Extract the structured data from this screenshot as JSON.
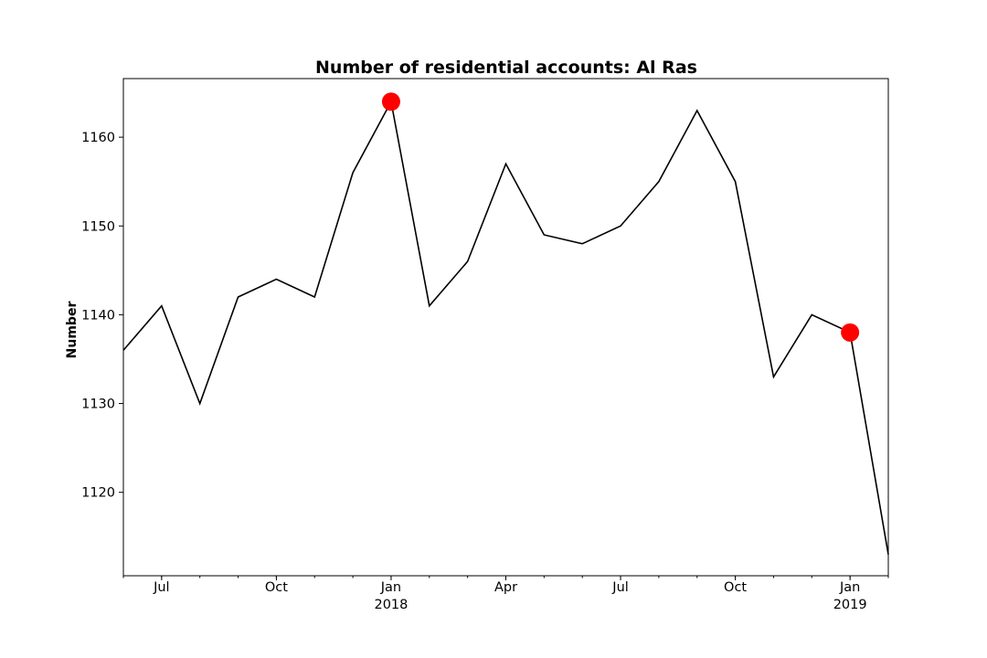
{
  "chart_data": {
    "type": "line",
    "title": "Number of residential accounts: Al Ras",
    "xlabel": "",
    "ylabel": "Number",
    "x": [
      "2017-06",
      "2017-07",
      "2017-08",
      "2017-09",
      "2017-10",
      "2017-11",
      "2017-12",
      "2018-01",
      "2018-02",
      "2018-03",
      "2018-04",
      "2018-05",
      "2018-06",
      "2018-07",
      "2018-08",
      "2018-09",
      "2018-10",
      "2018-11",
      "2018-12",
      "2019-01",
      "2019-02"
    ],
    "values": [
      1136,
      1141,
      1130,
      1142,
      1144,
      1142,
      1156,
      1164,
      1141,
      1146,
      1157,
      1149,
      1148,
      1150,
      1155,
      1163,
      1155,
      1133,
      1140,
      1138,
      1113
    ],
    "xlim": [
      "2017-06",
      "2019-02"
    ],
    "ylim": [
      1110.6,
      1166.6
    ],
    "yticks": [
      1120,
      1130,
      1140,
      1150,
      1160
    ],
    "xticks_major": [
      {
        "x": "2017-07",
        "label": "Jul",
        "sublabel": ""
      },
      {
        "x": "2017-10",
        "label": "Oct",
        "sublabel": ""
      },
      {
        "x": "2018-01",
        "label": "Jan",
        "sublabel": "2018"
      },
      {
        "x": "2018-04",
        "label": "Apr",
        "sublabel": ""
      },
      {
        "x": "2018-07",
        "label": "Jul",
        "sublabel": ""
      },
      {
        "x": "2018-10",
        "label": "Oct",
        "sublabel": ""
      },
      {
        "x": "2019-01",
        "label": "Jan",
        "sublabel": "2019"
      }
    ],
    "highlighted_points": [
      {
        "x": "2018-01",
        "y": 1164
      },
      {
        "x": "2019-01",
        "y": 1138
      }
    ],
    "line_color": "#000000",
    "marker_color": "#ff0000",
    "grid": false,
    "legend": "none"
  }
}
